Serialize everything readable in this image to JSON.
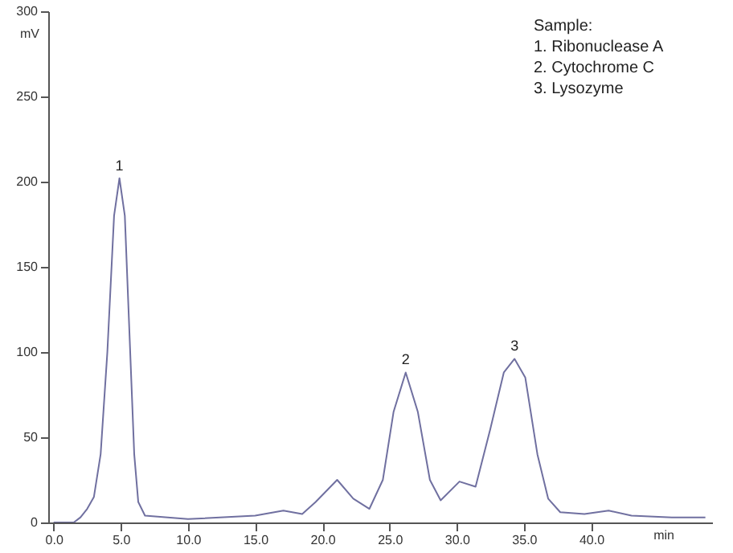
{
  "chart_data": {
    "type": "line",
    "xlabel": "min",
    "ylabel": "mV",
    "x": [
      0,
      1.5,
      2,
      2.5,
      3,
      3.5,
      4,
      4.5,
      4.9,
      5.3,
      5.7,
      6,
      6.3,
      6.8,
      10,
      15,
      17.1,
      18.5,
      19.5,
      21.1,
      22.3,
      23.5,
      24.5,
      25.3,
      26.2,
      27.1,
      28,
      28.8,
      30.2,
      31.4,
      32.5,
      33.5,
      34.3,
      35.1,
      36,
      36.8,
      37.7,
      39.5,
      41.3,
      43,
      46,
      48.5
    ],
    "series": [
      {
        "color": "#7070a0",
        "values": [
          0,
          0,
          3,
          8,
          15,
          40,
          100,
          180,
          202,
          180,
          100,
          40,
          12,
          4,
          2,
          4,
          7,
          5,
          12,
          25,
          14,
          8,
          25,
          65,
          88,
          65,
          25,
          13,
          24,
          21,
          55,
          88,
          96,
          85,
          40,
          14,
          6,
          5,
          7,
          4,
          3,
          3
        ]
      }
    ],
    "xlim": [
      -0.4,
      49
    ],
    "ylim": [
      0,
      300
    ],
    "xticks": [
      {
        "value": 0,
        "label": "0.0"
      },
      {
        "value": 5,
        "label": "5.0"
      },
      {
        "value": 10,
        "label": "10.0"
      },
      {
        "value": 15,
        "label": "15.0"
      },
      {
        "value": 20,
        "label": "20.0"
      },
      {
        "value": 25,
        "label": "25.0"
      },
      {
        "value": 30,
        "label": "30.0"
      },
      {
        "value": 35,
        "label": "35.0"
      },
      {
        "value": 40,
        "label": "40.0"
      }
    ],
    "yticks": [
      0,
      50,
      100,
      150,
      200,
      250,
      300
    ],
    "annotations": [
      {
        "text": "1",
        "x": 4.9,
        "y": 202
      },
      {
        "text": "2",
        "x": 26.2,
        "y": 88
      },
      {
        "text": "3",
        "x": 34.3,
        "y": 96
      },
      "Sample:",
      "1. Ribonuclease A",
      "2. Cytochrome C",
      "3. Lysozyme"
    ],
    "grid": false,
    "marker": "none",
    "line_style": "solid"
  }
}
